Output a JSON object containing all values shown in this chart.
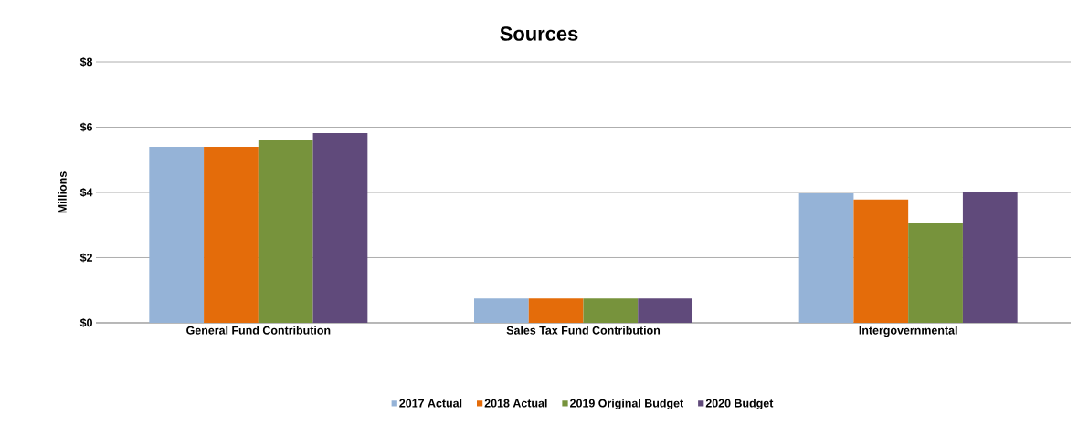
{
  "chart_data": {
    "type": "bar",
    "title": "Sources",
    "ylabel": "Millions",
    "categories": [
      "General Fund Contribution",
      "Sales Tax Fund Contribution",
      "Intergovernmental"
    ],
    "series": [
      {
        "name": "2017 Actual",
        "color": "#95b3d7",
        "values": [
          5.4,
          0.75,
          3.97
        ]
      },
      {
        "name": "2018 Actual",
        "color": "#e46c0a",
        "values": [
          5.4,
          0.75,
          3.78
        ]
      },
      {
        "name": "2019 Original Budget",
        "color": "#77933c",
        "values": [
          5.62,
          0.75,
          3.05
        ]
      },
      {
        "name": "2020 Budget",
        "color": "#604a7b",
        "values": [
          5.82,
          0.75,
          4.03
        ]
      }
    ],
    "ylim": [
      0,
      8
    ],
    "yticks": [
      {
        "value": 0,
        "label": "$0"
      },
      {
        "value": 2,
        "label": "$2"
      },
      {
        "value": 4,
        "label": "$4"
      },
      {
        "value": 6,
        "label": "$6"
      },
      {
        "value": 8,
        "label": "$8"
      }
    ],
    "grid": "y",
    "legend": "bottom"
  }
}
